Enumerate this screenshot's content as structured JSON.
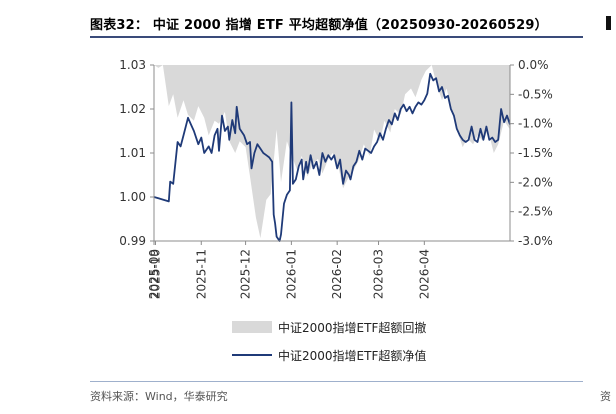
{
  "title": "图表32：  中证 2000 指增 ETF 平均超额净值（20250930-20260529）",
  "source": "资料来源：Wind，华泰研究",
  "edge_foot": "资",
  "chart_data": {
    "type": "line",
    "left_axis": {
      "min": 0.99,
      "max": 1.03,
      "ticks": [
        "1.03",
        "1.02",
        "1.01",
        "1.00",
        "0.99"
      ],
      "values": [
        1.03,
        1.02,
        1.01,
        1.0,
        0.99
      ]
    },
    "right_axis": {
      "min": -3.0,
      "max": 0.0,
      "ticks": [
        "0.0%",
        "-0.5%",
        "-1.0%",
        "-1.5%",
        "-2.0%",
        "-2.5%",
        "-3.0%"
      ],
      "values": [
        0.0,
        -0.5,
        -1.0,
        -1.5,
        -2.0,
        -2.5,
        -3.0
      ]
    },
    "x_start": "2025-09-30",
    "x_end": "2026-05-29",
    "x_ticks": [
      "2025-09",
      "2025-10",
      "2025-11",
      "2025-12",
      "2026-01",
      "2026-02",
      "2026-03",
      "2026-04"
    ],
    "series": [
      {
        "name": "中证2000指增ETF超额回撤",
        "kind": "area",
        "axis": "right",
        "color": "#d9d9d9",
        "points": [
          [
            "2025-09-30",
            0.0
          ],
          [
            "2025-10-03",
            -0.05
          ],
          [
            "2025-10-06",
            0.0
          ],
          [
            "2025-10-10",
            -0.7
          ],
          [
            "2025-10-13",
            -0.5
          ],
          [
            "2025-10-16",
            -0.9
          ],
          [
            "2025-10-20",
            -0.6
          ],
          [
            "2025-10-23",
            -0.85
          ],
          [
            "2025-10-27",
            -0.95
          ],
          [
            "2025-10-30",
            -0.7
          ],
          [
            "2025-11-03",
            -0.9
          ],
          [
            "2025-11-06",
            -1.2
          ],
          [
            "2025-11-10",
            -0.95
          ],
          [
            "2025-11-13",
            -1.0
          ],
          [
            "2025-11-17",
            -0.8
          ],
          [
            "2025-11-20",
            -1.3
          ],
          [
            "2025-11-24",
            -1.5
          ],
          [
            "2025-11-27",
            -1.3
          ],
          [
            "2025-12-01",
            -1.4
          ],
          [
            "2025-12-04",
            -1.9
          ],
          [
            "2025-12-08",
            -2.6
          ],
          [
            "2025-12-11",
            -2.95
          ],
          [
            "2025-12-15",
            -2.3
          ],
          [
            "2025-12-18",
            -2.2
          ],
          [
            "2025-12-22",
            -1.1
          ],
          [
            "2025-12-25",
            -2.0
          ],
          [
            "2025-12-29",
            -1.3
          ],
          [
            "2026-01-02",
            -1.6
          ],
          [
            "2026-01-05",
            -1.8
          ],
          [
            "2026-01-08",
            -1.55
          ],
          [
            "2026-01-12",
            -1.9
          ],
          [
            "2026-01-15",
            -1.7
          ],
          [
            "2026-01-19",
            -1.6
          ],
          [
            "2026-01-22",
            -1.85
          ],
          [
            "2026-01-26",
            -1.6
          ],
          [
            "2026-01-29",
            -1.5
          ],
          [
            "2026-02-02",
            -1.75
          ],
          [
            "2026-02-05",
            -2.1
          ],
          [
            "2026-02-09",
            -1.9
          ],
          [
            "2026-02-12",
            -1.8
          ],
          [
            "2026-02-16",
            -1.6
          ],
          [
            "2026-02-19",
            -1.35
          ],
          [
            "2026-02-23",
            -1.55
          ],
          [
            "2026-02-26",
            -1.1
          ],
          [
            "2026-03-02",
            -1.3
          ],
          [
            "2026-03-05",
            -0.95
          ],
          [
            "2026-03-09",
            -1.15
          ],
          [
            "2026-03-12",
            -0.75
          ],
          [
            "2026-03-16",
            -0.85
          ],
          [
            "2026-03-19",
            -0.5
          ],
          [
            "2026-03-23",
            -0.4
          ],
          [
            "2026-03-26",
            -0.55
          ],
          [
            "2026-03-30",
            -0.25
          ],
          [
            "2026-04-02",
            -0.1
          ],
          [
            "2026-04-06",
            0.0
          ],
          [
            "2026-04-09",
            -0.3
          ],
          [
            "2026-04-13",
            -0.6
          ],
          [
            "2026-04-16",
            -0.4
          ],
          [
            "2026-04-20",
            -0.8
          ],
          [
            "2026-04-23",
            -1.1
          ],
          [
            "2026-04-27",
            -1.4
          ],
          [
            "2026-04-30",
            -1.25
          ],
          [
            "2026-05-04",
            -1.35
          ],
          [
            "2026-05-07",
            -1.2
          ],
          [
            "2026-05-11",
            -1.3
          ],
          [
            "2026-05-14",
            -1.1
          ],
          [
            "2026-05-18",
            -1.5
          ],
          [
            "2026-05-21",
            -1.35
          ],
          [
            "2026-05-25",
            -0.95
          ],
          [
            "2026-05-29",
            -1.1
          ]
        ]
      },
      {
        "name": "中证2000指增ETF超额净值",
        "kind": "line",
        "axis": "left",
        "color": "#1f3a78",
        "points": [
          [
            "2025-09-30",
            1.0
          ],
          [
            "2025-10-03",
            0.9997
          ],
          [
            "2025-10-06",
            0.9994
          ],
          [
            "2025-10-10",
            0.999
          ],
          [
            "2025-10-11",
            1.0035
          ],
          [
            "2025-10-13",
            1.003
          ],
          [
            "2025-10-16",
            1.0125
          ],
          [
            "2025-10-18",
            1.0115
          ],
          [
            "2025-10-20",
            1.014
          ],
          [
            "2025-10-23",
            1.018
          ],
          [
            "2025-10-25",
            1.0165
          ],
          [
            "2025-10-27",
            1.015
          ],
          [
            "2025-10-30",
            1.012
          ],
          [
            "2025-11-01",
            1.0135
          ],
          [
            "2025-11-03",
            1.01
          ],
          [
            "2025-11-06",
            1.0115
          ],
          [
            "2025-11-08",
            1.01
          ],
          [
            "2025-11-10",
            1.014
          ],
          [
            "2025-11-12",
            1.0155
          ],
          [
            "2025-11-13",
            1.0105
          ],
          [
            "2025-11-15",
            1.0185
          ],
          [
            "2025-11-17",
            1.015
          ],
          [
            "2025-11-19",
            1.016
          ],
          [
            "2025-11-20",
            1.013
          ],
          [
            "2025-11-22",
            1.0175
          ],
          [
            "2025-11-24",
            1.0145
          ],
          [
            "2025-11-25",
            1.0205
          ],
          [
            "2025-11-27",
            1.0155
          ],
          [
            "2025-11-30",
            1.014
          ],
          [
            "2025-12-02",
            1.012
          ],
          [
            "2025-12-04",
            1.0125
          ],
          [
            "2025-12-05",
            1.0065
          ],
          [
            "2025-12-07",
            1.01
          ],
          [
            "2025-12-09",
            1.012
          ],
          [
            "2025-12-11",
            1.011
          ],
          [
            "2025-12-13",
            1.01
          ],
          [
            "2025-12-15",
            1.0095
          ],
          [
            "2025-12-17",
            1.009
          ],
          [
            "2025-12-19",
            1.008
          ],
          [
            "2025-12-20",
            0.996
          ],
          [
            "2025-12-21",
            0.994
          ],
          [
            "2025-12-22",
            0.991
          ],
          [
            "2025-12-24",
            0.99
          ],
          [
            "2025-12-25",
            0.9915
          ],
          [
            "2025-12-27",
            0.9985
          ],
          [
            "2025-12-29",
            1.0005
          ],
          [
            "2025-12-31",
            1.0015
          ],
          [
            "2026-01-01",
            1.0215
          ],
          [
            "2026-01-02",
            1.003
          ],
          [
            "2026-01-04",
            1.004
          ],
          [
            "2026-01-06",
            1.007
          ],
          [
            "2026-01-08",
            1.0085
          ],
          [
            "2026-01-09",
            1.004
          ],
          [
            "2026-01-11",
            1.008
          ],
          [
            "2026-01-12",
            1.0055
          ],
          [
            "2026-01-14",
            1.0095
          ],
          [
            "2026-01-16",
            1.0065
          ],
          [
            "2026-01-18",
            1.008
          ],
          [
            "2026-01-20",
            1.005
          ],
          [
            "2026-01-22",
            1.01
          ],
          [
            "2026-01-24",
            1.008
          ],
          [
            "2026-01-26",
            1.0095
          ],
          [
            "2026-01-28",
            1.0085
          ],
          [
            "2026-01-30",
            1.0095
          ],
          [
            "2026-02-01",
            1.0065
          ],
          [
            "2026-02-03",
            1.0085
          ],
          [
            "2026-02-05",
            1.003
          ],
          [
            "2026-02-07",
            1.006
          ],
          [
            "2026-02-09",
            1.005
          ],
          [
            "2026-02-10",
            1.004
          ],
          [
            "2026-02-12",
            1.007
          ],
          [
            "2026-02-14",
            1.008
          ],
          [
            "2026-02-16",
            1.0105
          ],
          [
            "2026-02-18",
            1.0085
          ],
          [
            "2026-02-20",
            1.011
          ],
          [
            "2026-02-22",
            1.0105
          ],
          [
            "2026-02-24",
            1.01
          ],
          [
            "2026-02-26",
            1.0115
          ],
          [
            "2026-02-28",
            1.0125
          ],
          [
            "2026-03-02",
            1.0145
          ],
          [
            "2026-03-04",
            1.013
          ],
          [
            "2026-03-06",
            1.0155
          ],
          [
            "2026-03-08",
            1.0175
          ],
          [
            "2026-03-10",
            1.0165
          ],
          [
            "2026-03-12",
            1.019
          ],
          [
            "2026-03-14",
            1.0175
          ],
          [
            "2026-03-16",
            1.02
          ],
          [
            "2026-03-18",
            1.021
          ],
          [
            "2026-03-20",
            1.0195
          ],
          [
            "2026-03-22",
            1.0205
          ],
          [
            "2026-03-24",
            1.019
          ],
          [
            "2026-03-26",
            1.0205
          ],
          [
            "2026-03-28",
            1.0215
          ],
          [
            "2026-03-30",
            1.021
          ],
          [
            "2026-04-01",
            1.022
          ],
          [
            "2026-04-03",
            1.0235
          ],
          [
            "2026-04-05",
            1.028
          ],
          [
            "2026-04-07",
            1.0265
          ],
          [
            "2026-04-09",
            1.027
          ],
          [
            "2026-04-11",
            1.024
          ],
          [
            "2026-04-13",
            1.025
          ],
          [
            "2026-04-15",
            1.0225
          ],
          [
            "2026-04-17",
            1.023
          ],
          [
            "2026-04-19",
            1.02
          ],
          [
            "2026-04-21",
            1.0185
          ],
          [
            "2026-04-23",
            1.0155
          ],
          [
            "2026-04-25",
            1.014
          ],
          [
            "2026-04-27",
            1.013
          ],
          [
            "2026-04-29",
            1.0125
          ],
          [
            "2026-05-01",
            1.013
          ],
          [
            "2026-05-03",
            1.016
          ],
          [
            "2026-05-05",
            1.013
          ],
          [
            "2026-05-07",
            1.0125
          ],
          [
            "2026-05-09",
            1.0155
          ],
          [
            "2026-05-11",
            1.013
          ],
          [
            "2026-05-13",
            1.016
          ],
          [
            "2026-05-15",
            1.013
          ],
          [
            "2026-05-17",
            1.0135
          ],
          [
            "2026-05-19",
            1.0125
          ],
          [
            "2026-05-21",
            1.013
          ],
          [
            "2026-05-23",
            1.02
          ],
          [
            "2026-05-25",
            1.017
          ],
          [
            "2026-05-27",
            1.0185
          ],
          [
            "2026-05-29",
            1.0165
          ]
        ]
      }
    ],
    "grid": false,
    "legend_position": "bottom-center"
  }
}
